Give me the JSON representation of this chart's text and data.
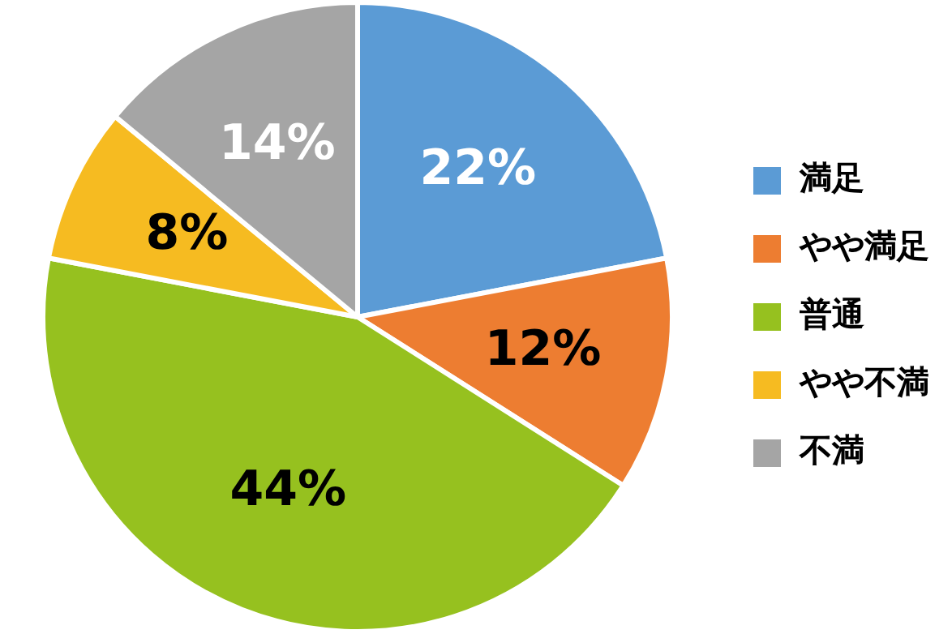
{
  "chart_data": {
    "type": "pie",
    "categories": [
      "満足",
      "やや満足",
      "普通",
      "やや不満",
      "不満"
    ],
    "values": [
      22,
      12,
      44,
      8,
      14
    ],
    "colors": [
      "#5b9bd5",
      "#ed7d31",
      "#96c11f",
      "#f6bb21",
      "#a5a5a5"
    ],
    "value_labels": [
      "22%",
      "12%",
      "44%",
      "8%",
      "14%"
    ],
    "legend": "right"
  }
}
